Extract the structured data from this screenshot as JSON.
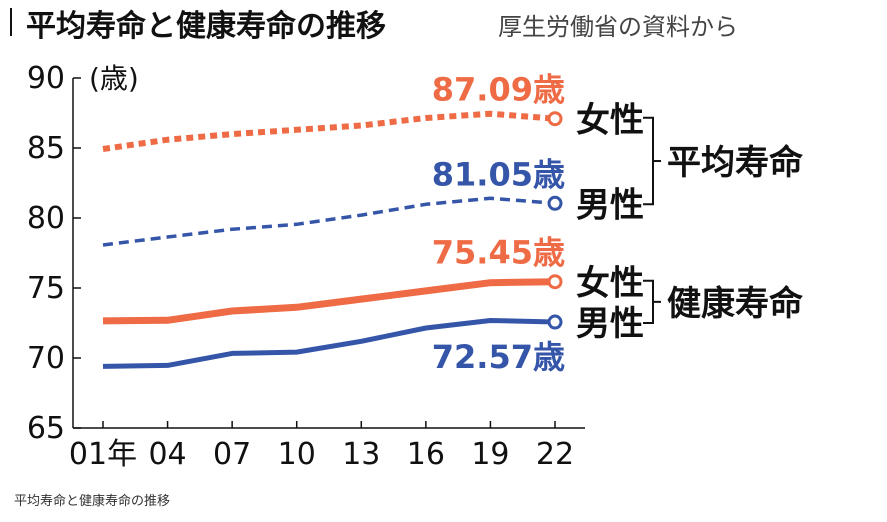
{
  "title": "平均寿命と健康寿命の推移",
  "source": "厚生労働省の資料から",
  "caption": "平均寿命と健康寿命の推移",
  "colors": {
    "female": "#ee6b45",
    "male": "#3556a8",
    "axis": "#111111",
    "text": "#111111"
  },
  "chart_data": {
    "type": "line",
    "unit_label": "(歳)",
    "x_tick_labels": [
      "01年",
      "04",
      "07",
      "10",
      "13",
      "16",
      "19",
      "22"
    ],
    "x": [
      2001,
      2004,
      2007,
      2010,
      2013,
      2016,
      2019,
      2022
    ],
    "ylim": [
      65,
      90
    ],
    "y_ticks": [
      65,
      70,
      75,
      80,
      85,
      90
    ],
    "grid": false,
    "series": [
      {
        "name": "女性",
        "group": "平均寿命",
        "style": "dotted",
        "color_key": "female",
        "values": [
          84.93,
          85.59,
          85.99,
          86.3,
          86.61,
          87.14,
          87.45,
          87.09
        ],
        "end_label": "87.09歳"
      },
      {
        "name": "男性",
        "group": "平均寿命",
        "style": "dashed",
        "color_key": "male",
        "values": [
          78.07,
          78.64,
          79.19,
          79.55,
          80.21,
          80.98,
          81.41,
          81.05
        ],
        "end_label": "81.05歳"
      },
      {
        "name": "女性",
        "group": "健康寿命",
        "style": "solid",
        "color_key": "female",
        "values": [
          72.65,
          72.69,
          73.36,
          73.62,
          74.21,
          74.79,
          75.38,
          75.45
        ],
        "end_label": "75.45歳"
      },
      {
        "name": "男性",
        "group": "健康寿命",
        "style": "solid",
        "color_key": "male",
        "values": [
          69.4,
          69.47,
          70.33,
          70.42,
          71.19,
          72.14,
          72.68,
          72.57
        ],
        "end_label": "72.57歳"
      }
    ],
    "groups": [
      "平均寿命",
      "健康寿命"
    ]
  }
}
